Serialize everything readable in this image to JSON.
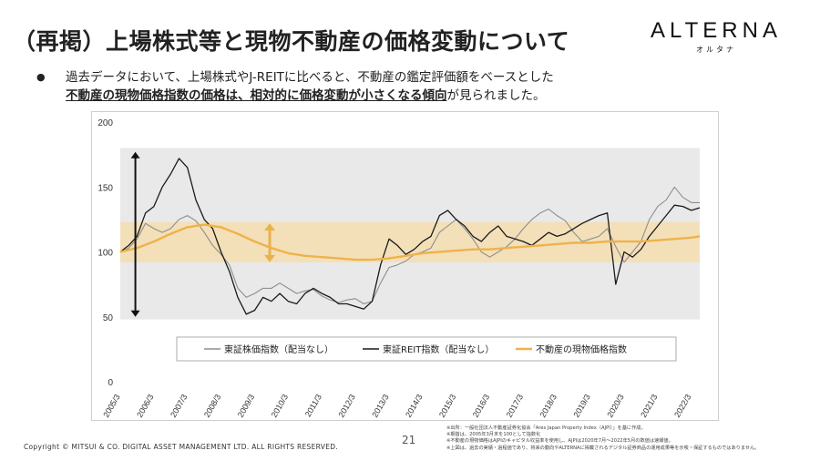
{
  "page": {
    "title": "（再掲）上場株式等と現物不動産の価格変動について",
    "logo_main": "ALTERNA",
    "logo_sub": "オルタナ",
    "bullet_line1": "過去データにおいて、上場株式やJ-REITに比べると、不動産の鑑定評価額をベースとした",
    "bullet_line2_emph": "不動産の現物価格指数の価格は、相対的に価格変動が小さくなる傾向",
    "bullet_line2_rest": "が見られました。",
    "page_number": "21",
    "copyright": "Copyright © MITSUI & CO. DIGITAL ASSET MANAGEMENT LTD. ALL RIGHTS RESERVED.",
    "notes": [
      "※出所：一般社団法人不動産証券化協会「Ares Japan Property Index（AJPI）」を基に作成。",
      "※期首は、2005年3月末を100として指数化",
      "※不動産の現物価格はAJPIのキャピタル収益率を使用し、AJPIは2020年7月～2022年5月の数値は速報値。",
      "※上図は、過去の実績・過程値であり、将来の動向やALTERNAに掲載されるデジタル証券商品の運用成果等を示唆・保証するものではありません。"
    ]
  },
  "chart_data": {
    "type": "line",
    "x_ticks": [
      "2005/3",
      "2006/3",
      "2007/3",
      "2008/3",
      "2009/3",
      "2010/3",
      "2011/3",
      "2012/3",
      "2013/3",
      "2014/3",
      "2015/3",
      "2016/3",
      "2017/3",
      "2018/3",
      "2019/3",
      "2020/3",
      "2021/3",
      "2022/3"
    ],
    "y_ticks": [
      "0",
      "50",
      "100",
      "150",
      "200"
    ],
    "ylim": [
      0,
      200
    ],
    "xlim": [
      2005.25,
      2022.5
    ],
    "grid": false,
    "legend_position": "bottom",
    "bands": [
      {
        "from": 48,
        "to": 180,
        "color": "#e9e9e9"
      },
      {
        "from": 92,
        "to": 123,
        "color": "#f3e0b9"
      }
    ],
    "arrows": [
      {
        "x": 2005.7,
        "from": 50,
        "to": 177,
        "color": "#111111"
      },
      {
        "x": 2009.7,
        "from": 92,
        "to": 122,
        "color": "#e8b24d"
      }
    ],
    "series": [
      {
        "name": "東証株価指数（配当なし）",
        "color": "#8e8e8e",
        "x": [
          2005.25,
          2005.5,
          2005.75,
          2006.0,
          2006.25,
          2006.5,
          2006.75,
          2007.0,
          2007.25,
          2007.5,
          2007.75,
          2008.0,
          2008.25,
          2008.5,
          2008.75,
          2009.0,
          2009.25,
          2009.5,
          2009.75,
          2010.0,
          2010.25,
          2010.5,
          2010.75,
          2011.0,
          2011.25,
          2011.5,
          2011.75,
          2012.0,
          2012.25,
          2012.5,
          2012.75,
          2013.0,
          2013.25,
          2013.5,
          2013.75,
          2014.0,
          2014.25,
          2014.5,
          2014.75,
          2015.0,
          2015.25,
          2015.5,
          2015.75,
          2016.0,
          2016.25,
          2016.5,
          2016.75,
          2017.0,
          2017.25,
          2017.5,
          2017.75,
          2018.0,
          2018.25,
          2018.5,
          2018.75,
          2019.0,
          2019.25,
          2019.5,
          2019.75,
          2020.0,
          2020.25,
          2020.5,
          2020.75,
          2021.0,
          2021.25,
          2021.5,
          2021.75,
          2022.0,
          2022.25,
          2022.5
        ],
        "values": [
          100,
          103,
          110,
          122,
          118,
          115,
          118,
          125,
          128,
          124,
          115,
          105,
          98,
          90,
          72,
          65,
          68,
          72,
          72,
          76,
          72,
          68,
          70,
          71,
          66,
          63,
          61,
          63,
          64,
          60,
          62,
          76,
          88,
          90,
          93,
          98,
          100,
          103,
          115,
          120,
          125,
          118,
          110,
          100,
          96,
          100,
          104,
          110,
          118,
          125,
          130,
          133,
          128,
          124,
          115,
          108,
          110,
          112,
          118,
          104,
          92,
          100,
          108,
          125,
          135,
          140,
          150,
          142,
          138,
          138
        ]
      },
      {
        "name": "東証REIT指数（配当なし）",
        "color": "#1a1a1a",
        "x": [
          2005.25,
          2005.5,
          2005.75,
          2006.0,
          2006.25,
          2006.5,
          2006.75,
          2007.0,
          2007.25,
          2007.5,
          2007.75,
          2008.0,
          2008.25,
          2008.5,
          2008.75,
          2009.0,
          2009.25,
          2009.5,
          2009.75,
          2010.0,
          2010.25,
          2010.5,
          2010.75,
          2011.0,
          2011.25,
          2011.5,
          2011.75,
          2012.0,
          2012.25,
          2012.5,
          2012.75,
          2013.0,
          2013.25,
          2013.5,
          2013.75,
          2014.0,
          2014.25,
          2014.5,
          2014.75,
          2015.0,
          2015.25,
          2015.5,
          2015.75,
          2016.0,
          2016.25,
          2016.5,
          2016.75,
          2017.0,
          2017.25,
          2017.5,
          2017.75,
          2018.0,
          2018.25,
          2018.5,
          2018.75,
          2019.0,
          2019.25,
          2019.5,
          2019.75,
          2020.0,
          2020.25,
          2020.5,
          2020.75,
          2021.0,
          2021.25,
          2021.5,
          2021.75,
          2022.0,
          2022.25,
          2022.5
        ],
        "values": [
          100,
          105,
          112,
          130,
          135,
          150,
          160,
          172,
          165,
          140,
          125,
          118,
          100,
          85,
          65,
          52,
          55,
          65,
          62,
          68,
          62,
          60,
          68,
          72,
          68,
          65,
          60,
          60,
          58,
          56,
          62,
          90,
          110,
          105,
          98,
          102,
          108,
          112,
          128,
          132,
          125,
          120,
          112,
          108,
          115,
          120,
          112,
          110,
          108,
          105,
          110,
          115,
          112,
          114,
          118,
          122,
          125,
          128,
          130,
          75,
          100,
          96,
          102,
          112,
          120,
          128,
          136,
          135,
          132,
          134
        ]
      },
      {
        "name": "不動産の現物価格指数",
        "color": "#efb24a",
        "x": [
          2005.25,
          2005.75,
          2006.25,
          2006.75,
          2007.25,
          2007.75,
          2008.25,
          2008.75,
          2009.25,
          2009.75,
          2010.25,
          2010.75,
          2011.25,
          2011.75,
          2012.25,
          2012.75,
          2013.25,
          2013.75,
          2014.25,
          2014.75,
          2015.25,
          2015.75,
          2016.25,
          2016.75,
          2017.25,
          2017.75,
          2018.25,
          2018.75,
          2019.25,
          2019.75,
          2020.25,
          2020.75,
          2021.25,
          2021.75,
          2022.25,
          2022.5
        ],
        "values": [
          100,
          103,
          108,
          114,
          119,
          121,
          119,
          114,
          108,
          103,
          99,
          97,
          96,
          95,
          94,
          94,
          95,
          97,
          99,
          100,
          101,
          102,
          102,
          103,
          104,
          105,
          106,
          107,
          107,
          108,
          108,
          108,
          109,
          110,
          111,
          112
        ]
      }
    ]
  }
}
